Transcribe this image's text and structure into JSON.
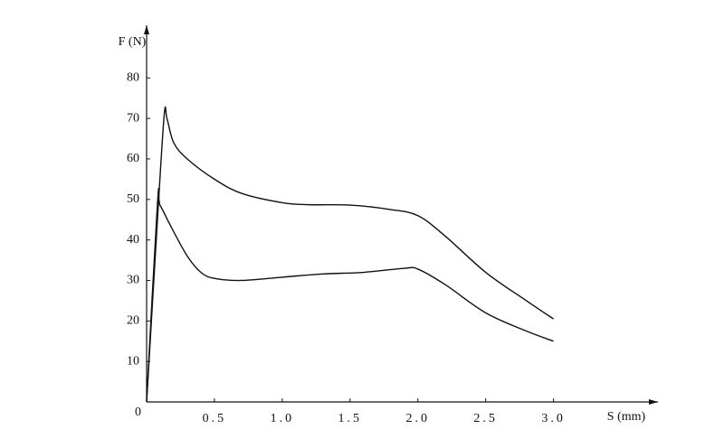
{
  "chart_data": {
    "type": "line",
    "y_label": "F (N)",
    "x_label": "S (mm)",
    "xlim": [
      0,
      3.77
    ],
    "ylim": [
      0,
      93
    ],
    "xticks": [
      0.5,
      {
        "value": 1,
        "label": "1.0"
      },
      1.5,
      {
        "value": 2,
        "label": "2.0"
      },
      2.5,
      {
        "value": 3,
        "label": "3.0"
      }
    ],
    "yticks": [
      0,
      10,
      20,
      30,
      40,
      50,
      60,
      70,
      80
    ],
    "series": [
      {
        "color": "#111111",
        "x": [
          0,
          0.08,
          0.13,
          0.15,
          0.2,
          0.3,
          0.5,
          0.7,
          1.0,
          1.2,
          1.5,
          1.8,
          2.0,
          2.2,
          2.5,
          2.8,
          3.0
        ],
        "values": [
          0,
          45,
          71,
          70,
          64,
          60,
          55,
          51.5,
          49.2,
          48.7,
          48.6,
          47.5,
          46,
          41,
          32,
          25,
          20.5
        ]
      },
      {
        "color": "#111111",
        "x": [
          0,
          0.08,
          0.1,
          0.2,
          0.3,
          0.4,
          0.5,
          0.7,
          1.0,
          1.3,
          1.6,
          1.9,
          2.0,
          2.2,
          2.5,
          2.8,
          3.0
        ],
        "values": [
          0,
          49,
          48.5,
          42,
          36,
          32,
          30.5,
          30,
          30.8,
          31.6,
          32,
          33,
          32.8,
          29,
          22,
          17.5,
          15
        ]
      }
    ]
  }
}
